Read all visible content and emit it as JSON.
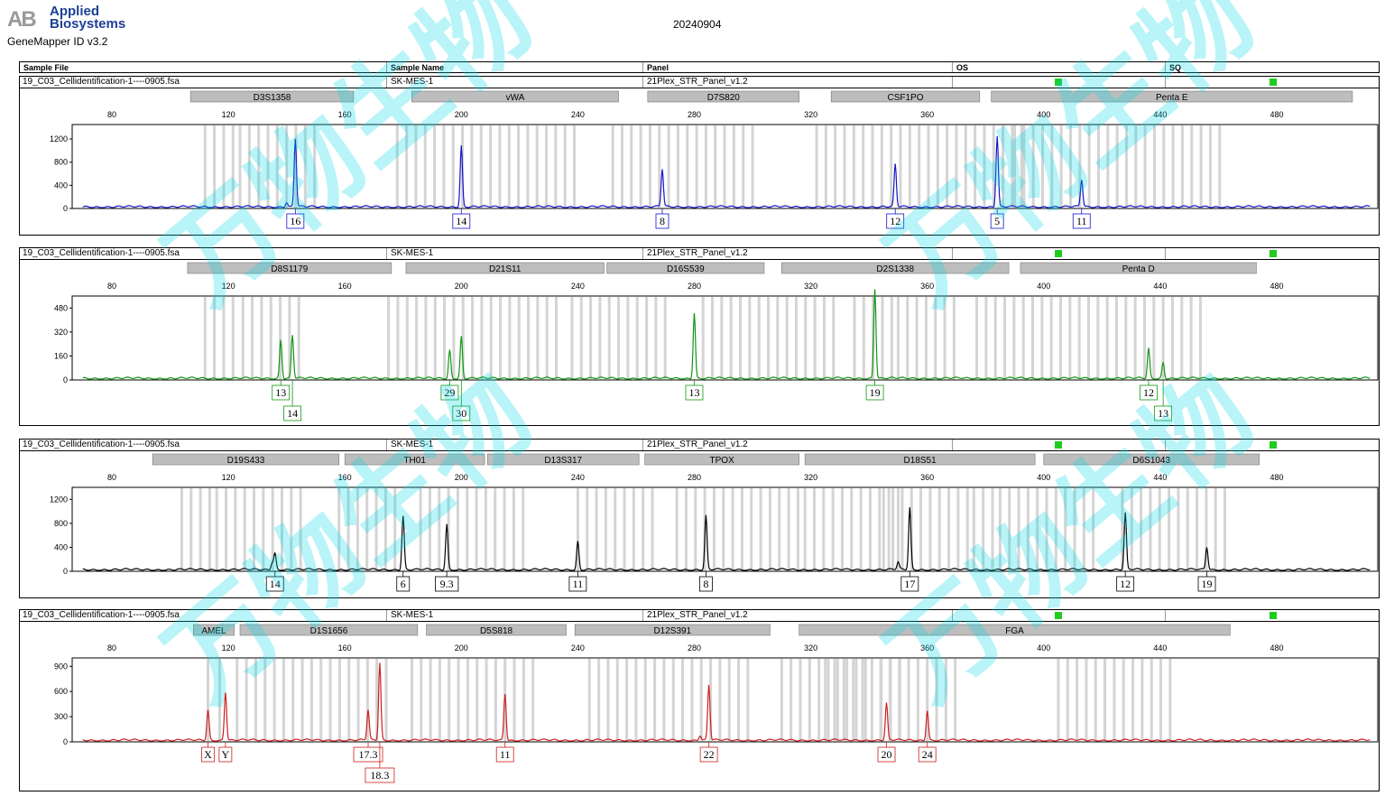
{
  "header": {
    "brand": "Applied\nBiosystems",
    "logo_mark": "AB",
    "product": "GeneMapper ID v3.2",
    "date": "20240904"
  },
  "table_header": {
    "sample_file": "Sample File",
    "sample_name": "Sample Name",
    "panel": "Panel",
    "os": "OS",
    "sq": "SQ"
  },
  "status_color": "#1fcc1f",
  "panels": [
    {
      "sample_file": "19_C03_Cellidentification-1----0905.fsa",
      "sample_name": "SK-MES-1",
      "panel": "21Plex_STR_Panel_v1.2",
      "color": "#1414c8",
      "ymax": 1450,
      "yticks": [
        0,
        400,
        800,
        1200
      ],
      "loci": [
        {
          "name": "D3S1358",
          "start": 107,
          "end": 163
        },
        {
          "name": "vWA",
          "start": 183,
          "end": 254
        },
        {
          "name": "D7S820",
          "start": 264,
          "end": 316
        },
        {
          "name": "CSF1PO",
          "start": 327,
          "end": 378
        },
        {
          "name": "Penta E",
          "start": 382,
          "end": 506
        }
      ],
      "bins": [
        [
          112,
          122
        ],
        [
          124,
          150
        ],
        [
          178,
          240
        ],
        [
          252,
          300
        ],
        [
          322,
          395
        ],
        [
          390,
          462
        ]
      ],
      "peaks": [
        {
          "x": 143,
          "h": 1180,
          "label": "16",
          "row": 0
        },
        {
          "x": 140,
          "h": 80
        },
        {
          "x": 200,
          "h": 1060,
          "label": "14",
          "row": 0
        },
        {
          "x": 269,
          "h": 650,
          "label": "8",
          "row": 0
        },
        {
          "x": 349,
          "h": 730,
          "label": "12",
          "row": 0
        },
        {
          "x": 384,
          "h": 1230,
          "label": "5",
          "row": 0
        },
        {
          "x": 413,
          "h": 470,
          "label": "11",
          "row": 0
        }
      ]
    },
    {
      "sample_file": "19_C03_Cellidentification-1----0905.fsa",
      "sample_name": "SK-MES-1",
      "panel": "21Plex_STR_Panel_v1.2",
      "color": "#129612",
      "ymax": 560,
      "yticks": [
        0,
        160,
        320,
        480
      ],
      "loci": [
        {
          "name": "D8S1179",
          "start": 106,
          "end": 176
        },
        {
          "name": "D21S11",
          "start": 181,
          "end": 249
        },
        {
          "name": "D16S539",
          "start": 250,
          "end": 304
        },
        {
          "name": "D2S1338",
          "start": 310,
          "end": 388
        },
        {
          "name": "Penta D",
          "start": 392,
          "end": 473
        }
      ],
      "bins": [
        [
          112,
          122
        ],
        [
          125,
          146
        ],
        [
          175,
          235
        ],
        [
          238,
          270
        ],
        [
          283,
          330
        ],
        [
          335,
          348
        ],
        [
          350,
          372
        ],
        [
          377,
          456
        ]
      ],
      "peaks": [
        {
          "x": 138,
          "h": 260,
          "label": "13",
          "row": 0
        },
        {
          "x": 142,
          "h": 290,
          "label": "14",
          "row": 1
        },
        {
          "x": 196,
          "h": 190,
          "label": "29",
          "row": 0
        },
        {
          "x": 200,
          "h": 280,
          "label": "30",
          "row": 1
        },
        {
          "x": 280,
          "h": 440,
          "label": "13",
          "row": 0
        },
        {
          "x": 342,
          "h": 600,
          "label": "19",
          "row": 0
        },
        {
          "x": 436,
          "h": 200,
          "label": "12",
          "row": 0
        },
        {
          "x": 441,
          "h": 110,
          "label": "13",
          "row": 1
        }
      ]
    },
    {
      "sample_file": "19_C03_Cellidentification-1----0905.fsa",
      "sample_name": "SK-MES-1",
      "panel": "21Plex_STR_Panel_v1.2",
      "color": "#000000",
      "ymax": 1400,
      "yticks": [
        0,
        400,
        800,
        1200
      ],
      "loci": [
        {
          "name": "D19S433",
          "start": 94,
          "end": 158
        },
        {
          "name": "TH01",
          "start": 160,
          "end": 208
        },
        {
          "name": "D13S317",
          "start": 209,
          "end": 261
        },
        {
          "name": "TPOX",
          "start": 263,
          "end": 316
        },
        {
          "name": "D18S51",
          "start": 318,
          "end": 397
        },
        {
          "name": "D6S1043",
          "start": 400,
          "end": 474
        }
      ],
      "bins": [
        [
          104,
          115
        ],
        [
          116,
          145
        ],
        [
          158,
          178
        ],
        [
          186,
          222
        ],
        [
          240,
          266
        ],
        [
          274,
          316
        ],
        [
          318,
          352
        ],
        [
          345,
          375
        ],
        [
          376,
          385
        ],
        [
          385,
          420
        ],
        [
          427,
          465
        ]
      ],
      "peaks": [
        {
          "x": 136,
          "h": 280,
          "label": "14",
          "row": 0
        },
        {
          "x": 135,
          "h": 120
        },
        {
          "x": 180,
          "h": 900,
          "label": "6",
          "row": 0
        },
        {
          "x": 195,
          "h": 760,
          "label": "9.3",
          "row": 0
        },
        {
          "x": 240,
          "h": 470,
          "label": "11",
          "row": 0
        },
        {
          "x": 284,
          "h": 900,
          "label": "8",
          "row": 0
        },
        {
          "x": 354,
          "h": 1030,
          "label": "17",
          "row": 0
        },
        {
          "x": 350,
          "h": 120
        },
        {
          "x": 428,
          "h": 940,
          "label": "12",
          "row": 0
        },
        {
          "x": 456,
          "h": 380,
          "label": "19",
          "row": 0
        }
      ]
    },
    {
      "sample_file": "19_C03_Cellidentification-1----0905.fsa",
      "sample_name": "SK-MES-1",
      "panel": "21Plex_STR_Panel_v1.2",
      "color": "#cc1f1f",
      "ymax": 1000,
      "yticks": [
        0,
        300,
        600,
        900
      ],
      "loci": [
        {
          "name": "AMEL",
          "start": 108,
          "end": 122
        },
        {
          "name": "D1S1656",
          "start": 124,
          "end": 185
        },
        {
          "name": "D5S818",
          "start": 188,
          "end": 236
        },
        {
          "name": "D12S391",
          "start": 239,
          "end": 306
        },
        {
          "name": "FGA",
          "start": 316,
          "end": 464
        }
      ],
      "bins": [
        [
          113,
          116
        ],
        [
          117,
          120
        ],
        [
          123,
          176
        ],
        [
          183,
          227
        ],
        [
          244,
          300
        ],
        [
          310,
          340
        ],
        [
          325,
          352
        ],
        [
          344,
          370
        ],
        [
          405,
          445
        ]
      ],
      "peaks": [
        {
          "x": 113,
          "h": 360,
          "label": "X",
          "row": 0
        },
        {
          "x": 119,
          "h": 580,
          "label": "Y",
          "row": 0
        },
        {
          "x": 168,
          "h": 360,
          "label": "17.3",
          "row": 0
        },
        {
          "x": 172,
          "h": 920,
          "label": "18.3",
          "row": 1
        },
        {
          "x": 215,
          "h": 560,
          "label": "11",
          "row": 0
        },
        {
          "x": 285,
          "h": 660,
          "label": "22",
          "row": 0
        },
        {
          "x": 282,
          "h": 60
        },
        {
          "x": 346,
          "h": 440,
          "label": "20",
          "row": 0
        },
        {
          "x": 360,
          "h": 360,
          "label": "24",
          "row": 0
        }
      ]
    }
  ],
  "chart_data": {
    "type": "line",
    "x_axis_ticks": [
      80,
      120,
      160,
      200,
      240,
      280,
      320,
      360,
      400,
      440,
      480
    ],
    "xlim": [
      70,
      512
    ],
    "note_source": "Electropherogram panels; allele call labels below peaks"
  },
  "watermark": "万物生物"
}
